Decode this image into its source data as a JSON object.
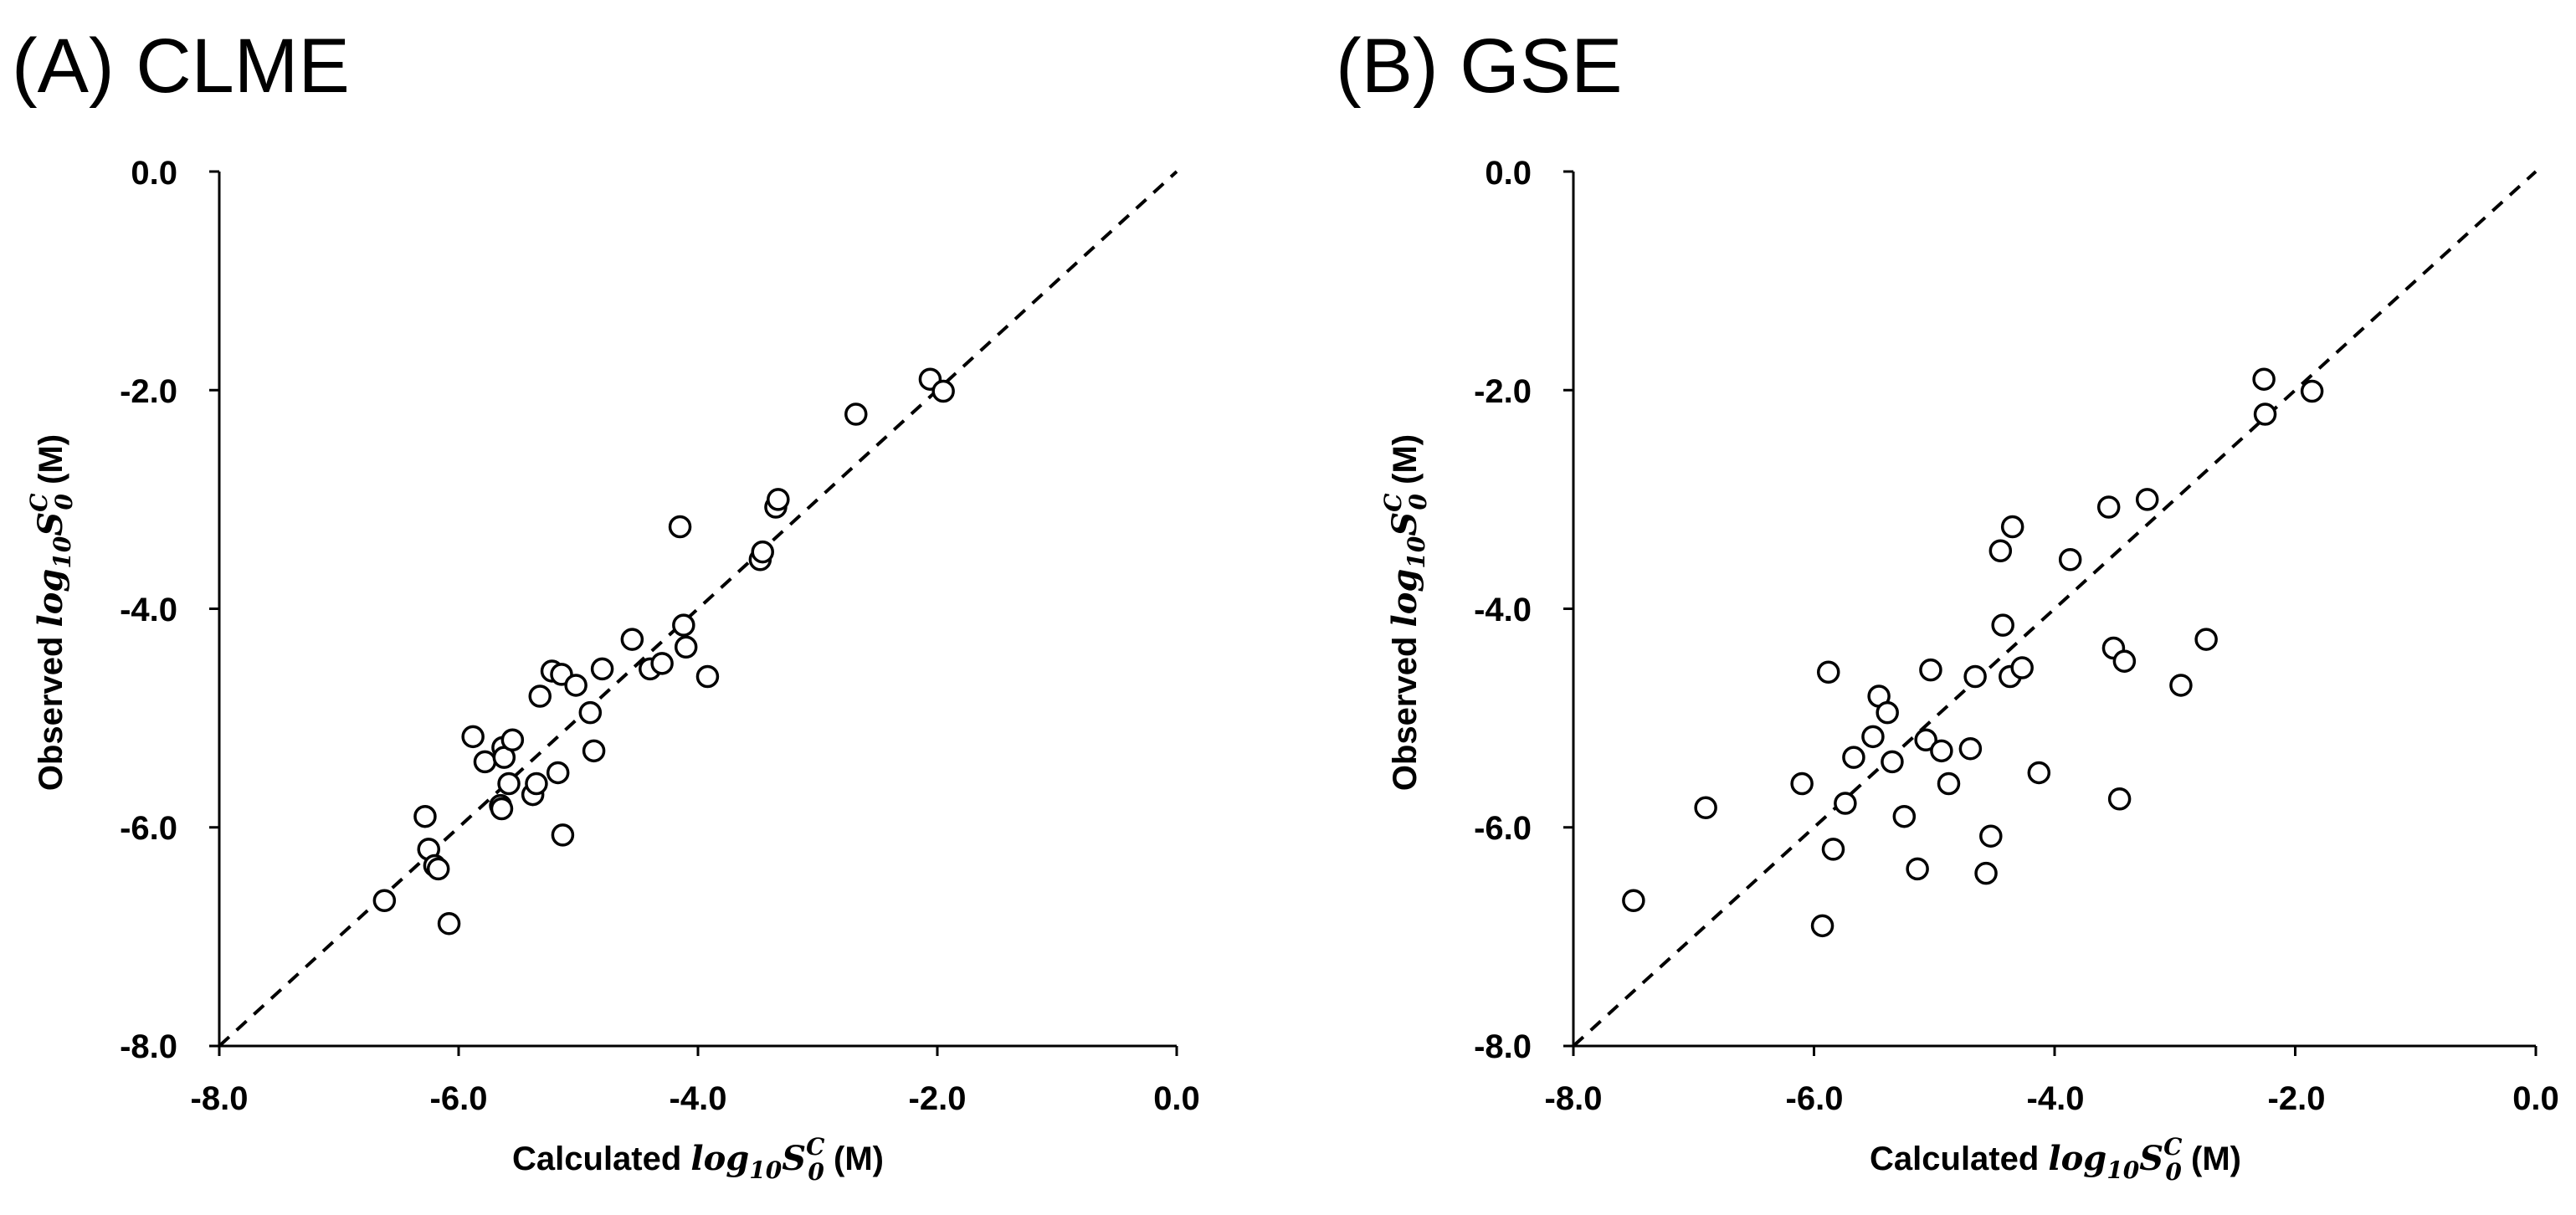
{
  "chart_data": [
    {
      "type": "scatter",
      "title": "(A) CLME",
      "xlabel_prefix": "Calculated ",
      "ylabel_prefix": "Observed ",
      "axis_math": {
        "base": "log",
        "sub": "10",
        "var": "S",
        "sup": "C",
        "subvar": "0"
      },
      "unit_label": " (M)",
      "xlim": [
        -8.0,
        0.0
      ],
      "ylim": [
        -8.0,
        0.0
      ],
      "xticks": [
        "-8.0",
        "-6.0",
        "-4.0",
        "-2.0",
        "0.0"
      ],
      "yticks": [
        "-8.0",
        "-6.0",
        "-4.0",
        "-2.0",
        "0.0"
      ],
      "reference_line": "y = x (dashed)",
      "points": [
        {
          "x": -6.62,
          "y": -6.67
        },
        {
          "x": -6.08,
          "y": -6.88
        },
        {
          "x": -6.28,
          "y": -5.9
        },
        {
          "x": -6.25,
          "y": -6.2
        },
        {
          "x": -6.2,
          "y": -6.35
        },
        {
          "x": -6.17,
          "y": -6.38
        },
        {
          "x": -5.88,
          "y": -5.17
        },
        {
          "x": -5.78,
          "y": -5.4
        },
        {
          "x": -5.65,
          "y": -5.8
        },
        {
          "x": -5.64,
          "y": -5.83
        },
        {
          "x": -5.63,
          "y": -5.27
        },
        {
          "x": -5.62,
          "y": -5.36
        },
        {
          "x": -5.58,
          "y": -5.6
        },
        {
          "x": -5.55,
          "y": -5.2
        },
        {
          "x": -5.38,
          "y": -5.7
        },
        {
          "x": -5.35,
          "y": -5.6
        },
        {
          "x": -5.32,
          "y": -4.8
        },
        {
          "x": -5.22,
          "y": -4.57
        },
        {
          "x": -5.17,
          "y": -5.5
        },
        {
          "x": -5.14,
          "y": -4.6
        },
        {
          "x": -5.13,
          "y": -6.07
        },
        {
          "x": -5.02,
          "y": -4.7
        },
        {
          "x": -4.9,
          "y": -4.95
        },
        {
          "x": -4.87,
          "y": -5.3
        },
        {
          "x": -4.8,
          "y": -4.55
        },
        {
          "x": -4.55,
          "y": -4.28
        },
        {
          "x": -4.4,
          "y": -4.55
        },
        {
          "x": -4.3,
          "y": -4.5
        },
        {
          "x": -4.15,
          "y": -3.25
        },
        {
          "x": -4.12,
          "y": -4.15
        },
        {
          "x": -4.1,
          "y": -4.35
        },
        {
          "x": -3.92,
          "y": -4.62
        },
        {
          "x": -3.48,
          "y": -3.55
        },
        {
          "x": -3.46,
          "y": -3.48
        },
        {
          "x": -3.35,
          "y": -3.07
        },
        {
          "x": -3.33,
          "y": -3.0
        },
        {
          "x": -2.68,
          "y": -2.22
        },
        {
          "x": -2.06,
          "y": -1.9
        },
        {
          "x": -1.95,
          "y": -2.01
        }
      ]
    },
    {
      "type": "scatter",
      "title": "(B) GSE",
      "xlabel_prefix": "Calculated ",
      "ylabel_prefix": "Observed ",
      "axis_math": {
        "base": "log",
        "sub": "10",
        "var": "S",
        "sup": "C",
        "subvar": "0"
      },
      "unit_label": " (M)",
      "xlim": [
        -8.0,
        0.0
      ],
      "ylim": [
        -8.0,
        0.0
      ],
      "xticks": [
        "-8.0",
        "-6.0",
        "-4.0",
        "-2.0",
        "0.0"
      ],
      "yticks": [
        "-8.0",
        "-6.0",
        "-4.0",
        "-2.0",
        "0.0"
      ],
      "reference_line": "y = x (dashed)",
      "points": [
        {
          "x": -7.5,
          "y": -6.67
        },
        {
          "x": -6.9,
          "y": -5.82
        },
        {
          "x": -6.1,
          "y": -5.6
        },
        {
          "x": -5.93,
          "y": -6.9
        },
        {
          "x": -5.88,
          "y": -4.58
        },
        {
          "x": -5.84,
          "y": -6.2
        },
        {
          "x": -5.74,
          "y": -5.78
        },
        {
          "x": -5.67,
          "y": -5.36
        },
        {
          "x": -5.51,
          "y": -5.17
        },
        {
          "x": -5.46,
          "y": -4.8
        },
        {
          "x": -5.39,
          "y": -4.95
        },
        {
          "x": -5.35,
          "y": -5.4
        },
        {
          "x": -5.25,
          "y": -5.9
        },
        {
          "x": -5.14,
          "y": -6.38
        },
        {
          "x": -5.07,
          "y": -5.2
        },
        {
          "x": -5.03,
          "y": -4.56
        },
        {
          "x": -4.94,
          "y": -5.3
        },
        {
          "x": -4.88,
          "y": -5.6
        },
        {
          "x": -4.7,
          "y": -5.28
        },
        {
          "x": -4.66,
          "y": -4.62
        },
        {
          "x": -4.57,
          "y": -6.42
        },
        {
          "x": -4.53,
          "y": -6.08
        },
        {
          "x": -4.45,
          "y": -3.47
        },
        {
          "x": -4.43,
          "y": -4.15
        },
        {
          "x": -4.37,
          "y": -4.62
        },
        {
          "x": -4.35,
          "y": -3.25
        },
        {
          "x": -4.27,
          "y": -4.54
        },
        {
          "x": -4.13,
          "y": -5.5
        },
        {
          "x": -3.87,
          "y": -3.55
        },
        {
          "x": -3.55,
          "y": -3.07
        },
        {
          "x": -3.51,
          "y": -4.36
        },
        {
          "x": -3.46,
          "y": -5.74
        },
        {
          "x": -3.42,
          "y": -4.48
        },
        {
          "x": -3.23,
          "y": -3.0
        },
        {
          "x": -2.95,
          "y": -4.7
        },
        {
          "x": -2.74,
          "y": -4.28
        },
        {
          "x": -2.26,
          "y": -1.9
        },
        {
          "x": -2.25,
          "y": -2.22
        },
        {
          "x": -1.86,
          "y": -2.01
        }
      ]
    }
  ]
}
